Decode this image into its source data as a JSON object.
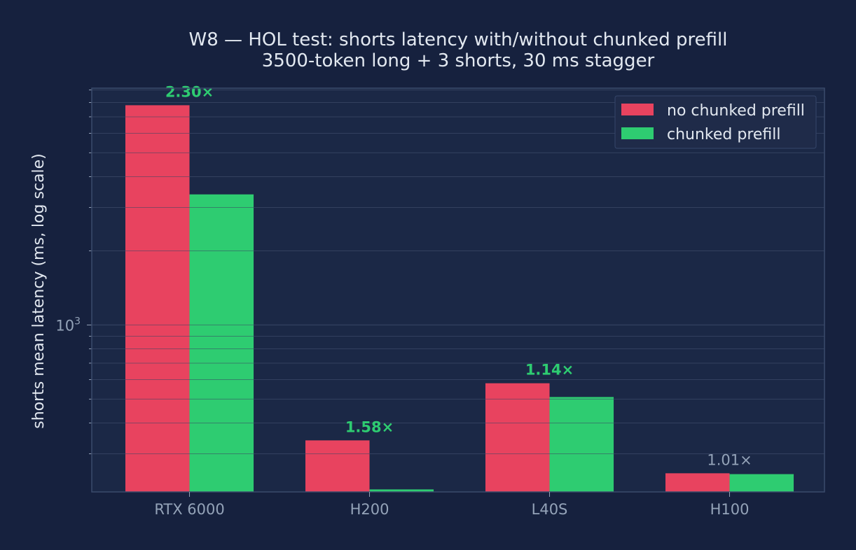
{
  "chart_data": {
    "type": "bar",
    "title": "W8 — HOL test: shorts latency with/without chunked prefill",
    "subtitle": "3500-token long + 3 shorts, 30 ms stagger",
    "xlabel": "",
    "ylabel": "shorts mean latency (ms, log scale)",
    "yscale": "log",
    "ylim": [
      210,
      9150
    ],
    "ytick_labels": [
      {
        "value": 1000,
        "base": "10",
        "exp": "3"
      }
    ],
    "grid": true,
    "legend_position": "top-right",
    "categories": [
      "RTX 6000",
      "H200",
      "L40S",
      "H100"
    ],
    "series": [
      {
        "name": "no chunked prefill",
        "color": "#e8435f",
        "values": [
          7800,
          340,
          580,
          250
        ]
      },
      {
        "name": "chunked prefill",
        "color": "#2ecc71",
        "values": [
          3390,
          215,
          510,
          248
        ]
      }
    ],
    "ratio_labels": [
      {
        "text": "2.30×",
        "color": "#2ecc71",
        "bold": true
      },
      {
        "text": "1.58×",
        "color": "#2ecc71",
        "bold": true
      },
      {
        "text": "1.14×",
        "color": "#2ecc71",
        "bold": true
      },
      {
        "text": "1.01×",
        "color": "#94a3b8",
        "bold": false
      }
    ],
    "colors": {
      "background": "#16213e",
      "plot_background": "#1b2846",
      "grid": "#2a3a5c",
      "axis": "#3a4a6b",
      "text": "#e2e8f0",
      "tick_text": "#94a3b8"
    }
  }
}
